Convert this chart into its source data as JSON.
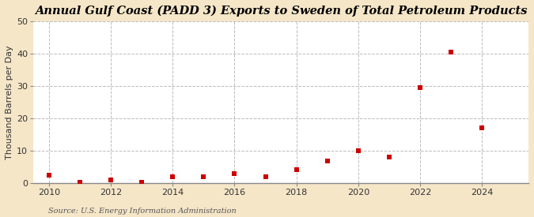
{
  "title": "Annual Gulf Coast (PADD 3) Exports to Sweden of Total Petroleum Products",
  "ylabel": "Thousand Barrels per Day",
  "source_text": "Source: U.S. Energy Information Administration",
  "fig_background_color": "#f5e6c8",
  "plot_background_color": "#ffffff",
  "years": [
    2010,
    2011,
    2012,
    2013,
    2014,
    2015,
    2016,
    2017,
    2018,
    2019,
    2020,
    2021,
    2022,
    2023,
    2024
  ],
  "values": [
    2.5,
    0.2,
    1.0,
    0.2,
    2.0,
    2.0,
    2.8,
    1.8,
    4.0,
    6.8,
    10.0,
    8.0,
    29.5,
    40.5,
    17.0
  ],
  "marker_color": "#cc0000",
  "marker_size": 18,
  "ylim": [
    0,
    50
  ],
  "yticks": [
    0,
    10,
    20,
    30,
    40,
    50
  ],
  "xlim": [
    2009.5,
    2025.5
  ],
  "xticks": [
    2010,
    2012,
    2014,
    2016,
    2018,
    2020,
    2022,
    2024
  ],
  "title_fontsize": 10.5,
  "ylabel_fontsize": 8,
  "tick_fontsize": 8,
  "source_fontsize": 7
}
